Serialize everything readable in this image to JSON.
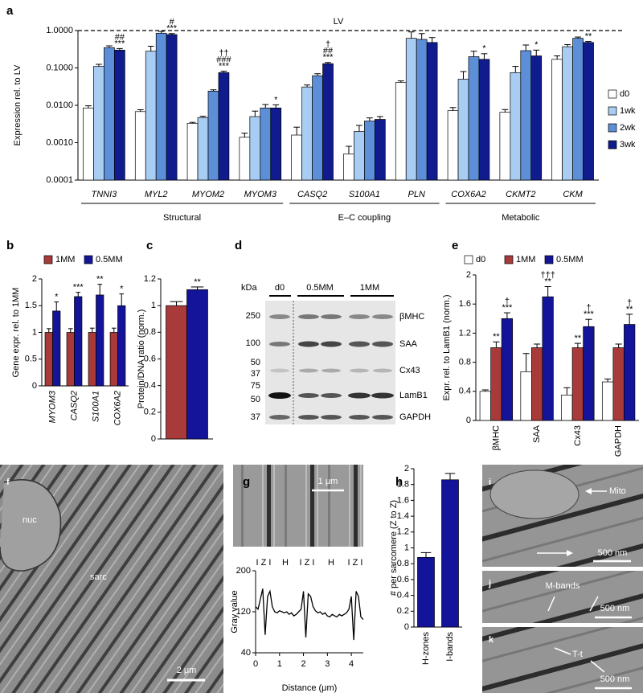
{
  "chart_data": [
    {
      "label": "a",
      "type": "bar",
      "yscale": "log",
      "ylabel": "Expression rel. to LV",
      "categories": [
        "TNNI3",
        "MYL2",
        "MYOM2",
        "MYOM3",
        "CASQ2",
        "S100A1",
        "PLN",
        "COX6A2",
        "CKMT2",
        "CKM"
      ],
      "groups": [
        {
          "name": "Structural",
          "from": 0,
          "to": 3
        },
        {
          "name": "E–C coupling",
          "from": 4,
          "to": 6
        },
        {
          "name": "Metabolic",
          "from": 7,
          "to": 9
        }
      ],
      "reference": {
        "value": 1,
        "label": "LV"
      },
      "ylim": [
        0.0001,
        1
      ],
      "yticks": [
        {
          "value": 0.0001,
          "label": "0.0001"
        },
        {
          "value": 0.001,
          "label": "0.0010"
        },
        {
          "value": 0.01,
          "label": "0.0100"
        },
        {
          "value": 0.1,
          "label": "0.1000"
        },
        {
          "value": 1,
          "label": "1.0000"
        }
      ],
      "legend": "right",
      "series": [
        {
          "name": "d0",
          "color": "#ffffff",
          "values": [
            0.0085,
            0.0068,
            0.0033,
            0.0014,
            0.0016,
            0.0005,
            0.041,
            0.0072,
            0.0065,
            0.17
          ],
          "errors": [
            0.0012,
            0.0008,
            0.0002,
            0.0004,
            0.001,
            0.0003,
            0.004,
            0.0015,
            0.0012,
            0.04
          ]
        },
        {
          "name": "1wk",
          "color": "#a9cdf2",
          "values": [
            0.11,
            0.28,
            0.0047,
            0.005,
            0.031,
            0.002,
            0.62,
            0.05,
            0.075,
            0.37
          ],
          "errors": [
            0.015,
            0.1,
            0.0004,
            0.002,
            0.004,
            0.0009,
            0.3,
            0.03,
            0.035,
            0.05
          ]
        },
        {
          "name": "2wk",
          "color": "#5c8fd8",
          "values": [
            0.35,
            0.85,
            0.024,
            0.0085,
            0.062,
            0.0038,
            0.58,
            0.2,
            0.29,
            0.62
          ],
          "errors": [
            0.04,
            0.1,
            0.002,
            0.002,
            0.008,
            0.0008,
            0.25,
            0.08,
            0.12,
            0.05
          ]
        },
        {
          "name": "3wk",
          "color": "#101c8e",
          "values": [
            0.3,
            0.78,
            0.075,
            0.0085,
            0.13,
            0.0042,
            0.48,
            0.17,
            0.21,
            0.48
          ],
          "errors": [
            0.03,
            0.05,
            0.007,
            0.0018,
            0.01,
            0.0008,
            0.17,
            0.07,
            0.09,
            0.03
          ],
          "significance": [
            [
              "##",
              "***"
            ],
            [
              "#",
              "***"
            ],
            [
              "††",
              "###",
              "***"
            ],
            [
              "*"
            ],
            [
              "†",
              "##",
              "***"
            ],
            null,
            null,
            [
              "*"
            ],
            [
              "*"
            ],
            [
              "**"
            ]
          ]
        }
      ]
    },
    {
      "label": "b",
      "type": "bar",
      "ylabel": "Gene expr. rel. to 1MM",
      "categories": [
        "MYOM3",
        "CASQ2",
        "S100A1",
        "COX6A2"
      ],
      "ylim": [
        0,
        2
      ],
      "yticks": [
        0,
        0.5,
        1,
        1.5,
        2
      ],
      "legend": "top",
      "series": [
        {
          "name": "1MM",
          "color": "#a83a3a",
          "values": [
            1,
            1,
            1,
            1
          ],
          "errors": [
            0.07,
            0.07,
            0.08,
            0.08
          ]
        },
        {
          "name": "0.5MM",
          "color": "#14149a",
          "values": [
            1.4,
            1.67,
            1.7,
            1.5
          ],
          "errors": [
            0.17,
            0.08,
            0.2,
            0.22
          ],
          "significance": [
            [
              "*"
            ],
            [
              "***"
            ],
            [
              "**"
            ],
            [
              "*"
            ]
          ]
        }
      ]
    },
    {
      "label": "c",
      "type": "bar",
      "ylabel": "Protein/DNA ratio (norm.)",
      "categories": [
        null
      ],
      "ylim": [
        0,
        1.2
      ],
      "yticks": [
        0,
        0.2,
        0.4,
        0.6,
        0.8,
        1,
        1.2
      ],
      "series": [
        {
          "color": "#a83a3a",
          "values": [
            1
          ],
          "errors": [
            0.03
          ]
        },
        {
          "color": "#14149a",
          "values": [
            1.12
          ],
          "errors": [
            0.02
          ],
          "significance": [
            [
              "**"
            ]
          ]
        }
      ]
    },
    {
      "label": "e",
      "type": "bar",
      "ylabel": "Expr. rel. to LamB1 (norm.)",
      "categories": [
        "βMHC",
        "SAA",
        "Cx43",
        "GAPDH"
      ],
      "ylim": [
        0,
        2
      ],
      "yticks": [
        0,
        0.4,
        0.8,
        1.2,
        1.6,
        2
      ],
      "legend": "top",
      "series": [
        {
          "name": "d0",
          "color": "#ffffff",
          "values": [
            0.4,
            0.67,
            0.35,
            0.53
          ],
          "errors": [
            0.02,
            0.25,
            0.1,
            0.04
          ]
        },
        {
          "name": "1MM",
          "color": "#a83a3a",
          "values": [
            1,
            1,
            1,
            1
          ],
          "errors": [
            0.08,
            0.05,
            0.06,
            0.05
          ],
          "significance": [
            [
              "**"
            ],
            null,
            [
              "**"
            ],
            null
          ]
        },
        {
          "name": "0.5MM",
          "color": "#14149a",
          "values": [
            1.4,
            1.7,
            1.29,
            1.32
          ],
          "errors": [
            0.08,
            0.14,
            0.1,
            0.14
          ],
          "significance": [
            [
              "†",
              "***"
            ],
            [
              "†††",
              "**"
            ],
            [
              "†",
              "***"
            ],
            [
              "†",
              "**"
            ]
          ]
        }
      ]
    },
    {
      "label": "g",
      "type": "line",
      "xlabel": "Distance (μm)",
      "ylabel": "Gray value",
      "zone_labels": [
        "I Z I",
        "H",
        "I Z I",
        "H",
        "I Z I"
      ],
      "xlim": [
        0,
        4.5
      ],
      "xticks": [
        0,
        1,
        2,
        3,
        4
      ],
      "ylim": [
        40,
        200
      ],
      "yticks": [
        40,
        120,
        200
      ],
      "color": "#000000",
      "x": [
        0,
        0.1,
        0.2,
        0.3,
        0.4,
        0.5,
        0.6,
        0.7,
        0.8,
        0.9,
        1,
        1.1,
        1.2,
        1.3,
        1.4,
        1.5,
        1.6,
        1.7,
        1.8,
        1.9,
        2,
        2.1,
        2.2,
        2.3,
        2.4,
        2.5,
        2.6,
        2.7,
        2.8,
        2.9,
        3,
        3.1,
        3.2,
        3.3,
        3.4,
        3.5,
        3.6,
        3.7,
        3.8,
        3.9,
        4,
        4.1,
        4.2,
        4.3,
        4.4,
        4.5
      ],
      "values": [
        130,
        125,
        145,
        165,
        75,
        150,
        160,
        130,
        120,
        118,
        122,
        120,
        118,
        120,
        115,
        118,
        112,
        115,
        120,
        125,
        160,
        70,
        155,
        150,
        130,
        122,
        118,
        120,
        115,
        118,
        112,
        110,
        115,
        112,
        110,
        115,
        112,
        115,
        118,
        125,
        150,
        65,
        160,
        150,
        110,
        105
      ]
    },
    {
      "label": "h",
      "type": "bar",
      "ylabel": "# per sarcomere (Z to Z)",
      "categories": [
        "H-zones",
        "I-bands"
      ],
      "ylim": [
        0,
        2
      ],
      "yticks": [
        0,
        0.2,
        0.4,
        0.6,
        0.8,
        1,
        1.2,
        1.4,
        1.6,
        1.8,
        2
      ],
      "series": [
        {
          "color": "#14149a",
          "values": [
            0.88,
            1.86
          ],
          "errors": [
            0.06,
            0.08
          ]
        }
      ]
    }
  ],
  "blot": {
    "label": "d",
    "unit": "kDa",
    "lanes": [
      "d0",
      "0.5MM",
      "1MM"
    ],
    "markers": [
      "250",
      "100",
      "50",
      "37",
      "75",
      "50",
      "37"
    ],
    "bands": [
      "βMHC",
      "SAA",
      "Cx43",
      "LamB1",
      "GAPDH"
    ]
  },
  "micrographs": {
    "f": {
      "label": "f",
      "nuc": "nuc",
      "sarc": "sarc",
      "scale": "2 μm"
    },
    "g": {
      "scale": "1 μm"
    },
    "i": {
      "label": "i",
      "mito": "Mito",
      "scale": "500 nm"
    },
    "j": {
      "label": "j",
      "mbands": "M-bands",
      "scale": "500 nm"
    },
    "k": {
      "label": "k",
      "tt": "T-t",
      "scale": "500 nm"
    }
  }
}
